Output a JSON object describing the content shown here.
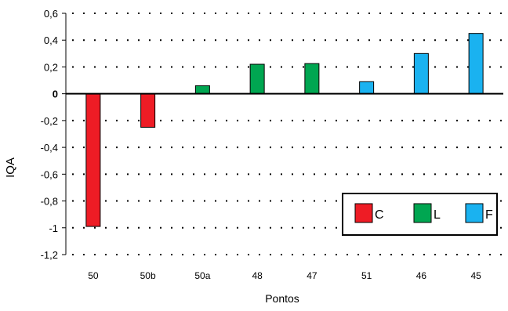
{
  "chart_data": {
    "type": "bar",
    "title": "",
    "xlabel": "Pontos",
    "ylabel": "IQA",
    "categories": [
      "50",
      "50b",
      "50a",
      "48",
      "47",
      "51",
      "46",
      "45"
    ],
    "values": [
      -0.99,
      -0.25,
      0.06,
      0.22,
      0.225,
      0.09,
      0.3,
      0.45
    ],
    "groups": [
      "C",
      "C",
      "L",
      "L",
      "L",
      "F",
      "F",
      "F"
    ],
    "ylim": [
      -1.2,
      0.6
    ],
    "yticks": [
      0.6,
      0.4,
      0.2,
      0,
      -0.2,
      -0.4,
      -0.6,
      -0.8,
      -1,
      -1.2
    ],
    "ytick_labels": [
      "0,6",
      "0,4",
      "0,2",
      "0",
      "-0,2",
      "-0,4",
      "-0,6",
      "-0,8",
      "-1",
      "-1,2"
    ],
    "grid": "dotted horizontal",
    "legend": {
      "position": "bottom-right",
      "entries": [
        {
          "label": "C",
          "color": "#ee1c25"
        },
        {
          "label": "L",
          "color": "#00a651"
        },
        {
          "label": "F",
          "color": "#1ab2f0"
        }
      ]
    },
    "colors": {
      "C": "#ee1c25",
      "L": "#00a651",
      "F": "#1ab2f0"
    }
  }
}
